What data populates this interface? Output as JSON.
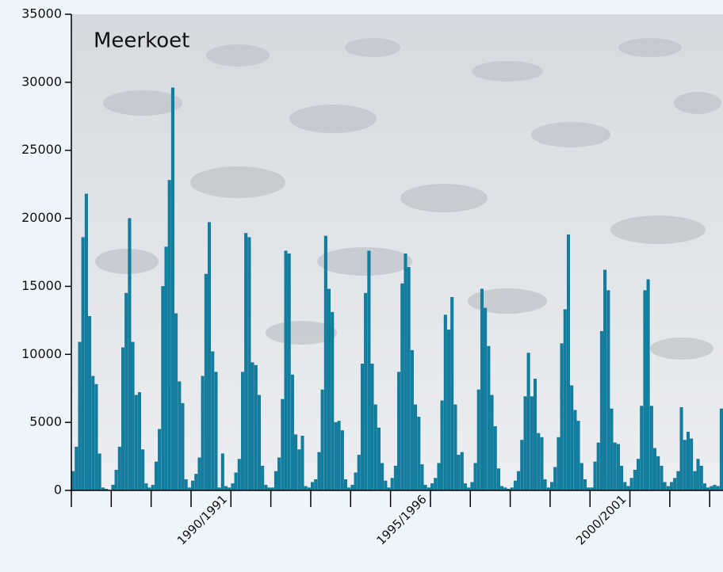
{
  "chart_data": {
    "type": "bar",
    "title": "Meerkoet",
    "color": "#0f7fa1",
    "categories": [
      null,
      null,
      null,
      null,
      null,
      null,
      null,
      null,
      null,
      null,
      null,
      null,
      null,
      null,
      null,
      null,
      null,
      null,
      null,
      null,
      null,
      null,
      null,
      null,
      null,
      null,
      null,
      null,
      null,
      null,
      null,
      null,
      null,
      null,
      null,
      null,
      null,
      null,
      null,
      null,
      null,
      null,
      null,
      null,
      null,
      null,
      null,
      null,
      null,
      null,
      null,
      null,
      null,
      null,
      null,
      null,
      null,
      null,
      null,
      null,
      null,
      null,
      null,
      null,
      null,
      null,
      null,
      null,
      null,
      null,
      null,
      null,
      null,
      null,
      null,
      null,
      null,
      null,
      null,
      null,
      null,
      null,
      null,
      null,
      null,
      null,
      null,
      null,
      null,
      null,
      null,
      null,
      null,
      null,
      null,
      null,
      null,
      null,
      null,
      null,
      null,
      null,
      null,
      null,
      null,
      null,
      null,
      null,
      null,
      null,
      null,
      null,
      null,
      null,
      null,
      null,
      null,
      null,
      null,
      null,
      null,
      null,
      null,
      null,
      null,
      null,
      null,
      null,
      null,
      null,
      null,
      null,
      null,
      null,
      null,
      null,
      null,
      null,
      null,
      null,
      null,
      null,
      null,
      null,
      null,
      null,
      null,
      null,
      null,
      null,
      null,
      null,
      null,
      null,
      null,
      null,
      null,
      null,
      null,
      null,
      null,
      null,
      null,
      null,
      null,
      null,
      null,
      null,
      null,
      null,
      null,
      null,
      null,
      null,
      null,
      null,
      null,
      null,
      null,
      null,
      null,
      null,
      null,
      null,
      null,
      null,
      null,
      null,
      null,
      null,
      null,
      null,
      null,
      null,
      null,
      null
    ],
    "values": [
      1400,
      3200,
      10900,
      18600,
      21800,
      12800,
      8400,
      7800,
      2700,
      200,
      100,
      0,
      400,
      1500,
      3200,
      10500,
      14500,
      20000,
      10900,
      7000,
      7200,
      3000,
      500,
      200,
      400,
      2100,
      4500,
      15000,
      17900,
      22800,
      29600,
      13000,
      8000,
      6400,
      800,
      200,
      700,
      1200,
      2400,
      8400,
      15900,
      19700,
      10200,
      8700,
      200,
      2700,
      300,
      200,
      500,
      1300,
      2300,
      8700,
      18900,
      18600,
      9400,
      9200,
      7000,
      1800,
      400,
      200,
      200,
      1400,
      2400,
      6700,
      17600,
      17400,
      8500,
      4100,
      3000,
      4000,
      300,
      200,
      600,
      800,
      2800,
      7400,
      18700,
      14800,
      13100,
      5000,
      5100,
      4400,
      800,
      200,
      400,
      1300,
      2600,
      9300,
      14500,
      17600,
      9300,
      6300,
      4600,
      2000,
      700,
      200,
      900,
      1800,
      8700,
      15200,
      17400,
      16400,
      10300,
      6300,
      5400,
      1900,
      400,
      200,
      500,
      900,
      2000,
      6600,
      12900,
      11800,
      14200,
      6300,
      2600,
      2800,
      500,
      200,
      600,
      2000,
      7400,
      14800,
      13400,
      10600,
      7000,
      4700,
      1600,
      300,
      200,
      100,
      200,
      700,
      1400,
      3700,
      6900,
      10100,
      6900,
      8200,
      4200,
      3900,
      800,
      200,
      600,
      1700,
      3900,
      10800,
      13300,
      18800,
      7700,
      5900,
      5100,
      2000,
      800,
      200,
      200,
      2100,
      3500,
      11700,
      16200,
      14700,
      6000,
      3500,
      3400,
      1800,
      600,
      300,
      900,
      1500,
      2300,
      6200,
      14700,
      15500,
      6200,
      3100,
      2500,
      1800,
      600,
      300,
      600,
      900,
      1400,
      6100,
      3700,
      4300,
      3800,
      1400,
      2300,
      1800,
      500,
      200,
      300,
      400,
      300,
      6000
    ],
    "xlim": [
      0,
      196
    ],
    "xticks": [
      0,
      12,
      24,
      36,
      {
        "value": 48,
        "label": "1990/1991"
      },
      60,
      72,
      84,
      96,
      {
        "value": 108,
        "label": "1995/1996"
      },
      120,
      132,
      144,
      156,
      {
        "value": 168,
        "label": "2000/2001"
      },
      180,
      192
    ],
    "ylim": [
      0,
      35000
    ],
    "yticks": [
      0,
      5000,
      10000,
      15000,
      20000,
      25000,
      30000,
      35000
    ]
  }
}
